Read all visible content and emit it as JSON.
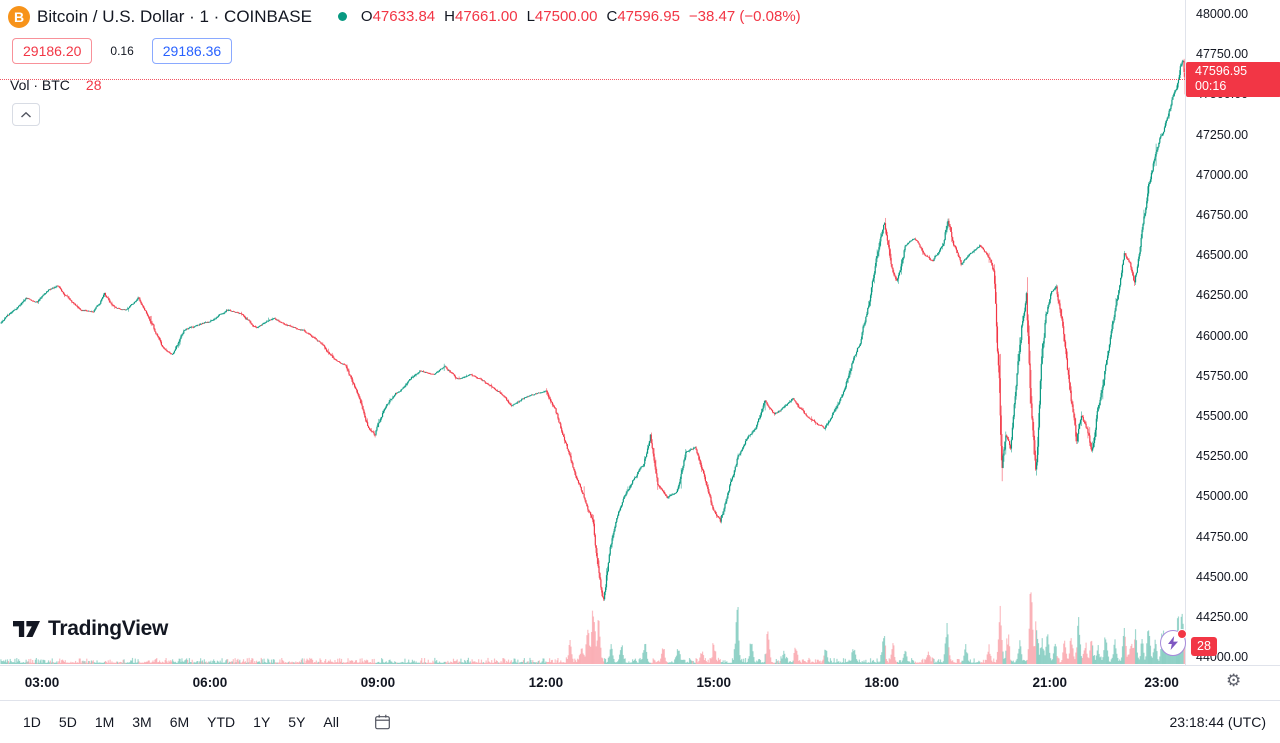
{
  "header": {
    "symbol_title": "Bitcoin / U.S. Dollar · 1 · COINBASE",
    "market_status": "open",
    "ohlc": {
      "open_label": "O",
      "open": "47633.84",
      "high_label": "H",
      "high": "47661.00",
      "low_label": "L",
      "low": "47500.00",
      "close_label": "C",
      "close": "47596.95",
      "change": "−38.47 (−0.08%)"
    },
    "bid": "29186.20",
    "spread": "0.16",
    "ask": "29186.36",
    "volume_label": "Vol · BTC",
    "volume_value": "28"
  },
  "price_axis": {
    "ticks": [
      "48000.00",
      "47750.00",
      "47500.00",
      "47250.00",
      "47000.00",
      "46750.00",
      "46500.00",
      "46250.00",
      "46000.00",
      "45750.00",
      "45500.00",
      "45250.00",
      "45000.00",
      "44750.00",
      "44500.00",
      "44250.00",
      "44000.00"
    ],
    "last_price_label": "47596.95",
    "countdown": "00:16",
    "volume_badge": "28"
  },
  "time_axis": {
    "labels": [
      {
        "text": "03:00",
        "minute": 180
      },
      {
        "text": "06:00",
        "minute": 360
      },
      {
        "text": "09:00",
        "minute": 540
      },
      {
        "text": "12:00",
        "minute": 720
      },
      {
        "text": "15:00",
        "minute": 900
      },
      {
        "text": "18:00",
        "minute": 1080
      },
      {
        "text": "21:00",
        "minute": 1260
      },
      {
        "text": "23:00",
        "minute": 1380
      }
    ]
  },
  "toolbar": {
    "ranges": [
      "1D",
      "5D",
      "1M",
      "3M",
      "6M",
      "YTD",
      "1Y",
      "5Y",
      "All"
    ],
    "clock": "23:18:44 (UTC)"
  },
  "watermark": {
    "brand": "TradingView"
  },
  "icons": {
    "bitcoin": "B",
    "gear": "⚙"
  },
  "colors": {
    "up": "#089981",
    "down": "#F23645",
    "accent_blue": "#2962FF",
    "bitcoin_orange": "#F7931A",
    "text": "#131722",
    "border": "#E0E3EB"
  },
  "chart_data": {
    "type": "candlestick",
    "title": "Bitcoin / U.S. Dollar, 1 minute, COINBASE",
    "interval_minutes": 1,
    "ohlc_current": {
      "open": 47633.84,
      "high": 47661.0,
      "low": 47500.0,
      "close": 47596.95,
      "change": -38.47,
      "change_pct": -0.08
    },
    "last_close": 47596.95,
    "time_range_minutes": [
      135,
      1405
    ],
    "y_axis": {
      "tick_step": 250,
      "first_tick": 48000,
      "last_tick": 44000,
      "price_at_top": 48087,
      "price_at_bottom": 43951,
      "grid": false
    },
    "legend_position": "top-left",
    "price_anchors": [
      [
        135,
        46080
      ],
      [
        150,
        46150
      ],
      [
        163,
        46230
      ],
      [
        175,
        46210
      ],
      [
        185,
        46280
      ],
      [
        197,
        46310
      ],
      [
        210,
        46220
      ],
      [
        222,
        46160
      ],
      [
        235,
        46150
      ],
      [
        247,
        46250
      ],
      [
        258,
        46170
      ],
      [
        270,
        46160
      ],
      [
        283,
        46230
      ],
      [
        295,
        46120
      ],
      [
        308,
        45930
      ],
      [
        320,
        45880
      ],
      [
        333,
        46040
      ],
      [
        345,
        46060
      ],
      [
        360,
        46090
      ],
      [
        378,
        46160
      ],
      [
        395,
        46130
      ],
      [
        410,
        46050
      ],
      [
        428,
        46110
      ],
      [
        445,
        46060
      ],
      [
        460,
        46030
      ],
      [
        478,
        45960
      ],
      [
        492,
        45860
      ],
      [
        505,
        45820
      ],
      [
        518,
        45640
      ],
      [
        530,
        45420
      ],
      [
        537,
        45380
      ],
      [
        545,
        45520
      ],
      [
        558,
        45630
      ],
      [
        572,
        45720
      ],
      [
        585,
        45790
      ],
      [
        600,
        45760
      ],
      [
        612,
        45810
      ],
      [
        625,
        45730
      ],
      [
        640,
        45760
      ],
      [
        655,
        45710
      ],
      [
        670,
        45650
      ],
      [
        683,
        45560
      ],
      [
        697,
        45610
      ],
      [
        710,
        45640
      ],
      [
        720,
        45650
      ],
      [
        730,
        45540
      ],
      [
        740,
        45360
      ],
      [
        750,
        45160
      ],
      [
        760,
        45010
      ],
      [
        770,
        44860
      ],
      [
        777,
        44480
      ],
      [
        782,
        44340
      ],
      [
        788,
        44650
      ],
      [
        796,
        44880
      ],
      [
        805,
        45000
      ],
      [
        815,
        45120
      ],
      [
        825,
        45200
      ],
      [
        832,
        45380
      ],
      [
        840,
        45080
      ],
      [
        850,
        44990
      ],
      [
        860,
        45030
      ],
      [
        870,
        45260
      ],
      [
        880,
        45310
      ],
      [
        890,
        45140
      ],
      [
        900,
        44910
      ],
      [
        907,
        44840
      ],
      [
        915,
        45010
      ],
      [
        925,
        45240
      ],
      [
        935,
        45360
      ],
      [
        945,
        45420
      ],
      [
        955,
        45570
      ],
      [
        965,
        45510
      ],
      [
        975,
        45550
      ],
      [
        985,
        45610
      ],
      [
        997,
        45510
      ],
      [
        1008,
        45460
      ],
      [
        1018,
        45420
      ],
      [
        1028,
        45520
      ],
      [
        1038,
        45630
      ],
      [
        1048,
        45820
      ],
      [
        1058,
        45980
      ],
      [
        1068,
        46240
      ],
      [
        1078,
        46580
      ],
      [
        1083,
        46690
      ],
      [
        1090,
        46420
      ],
      [
        1096,
        46320
      ],
      [
        1105,
        46560
      ],
      [
        1115,
        46610
      ],
      [
        1125,
        46510
      ],
      [
        1135,
        46460
      ],
      [
        1145,
        46570
      ],
      [
        1151,
        46740
      ],
      [
        1157,
        46600
      ],
      [
        1165,
        46460
      ],
      [
        1175,
        46510
      ],
      [
        1185,
        46560
      ],
      [
        1194,
        46490
      ],
      [
        1200,
        46400
      ],
      [
        1205,
        45850
      ],
      [
        1209,
        45250
      ],
      [
        1213,
        45430
      ],
      [
        1218,
        45330
      ],
      [
        1224,
        45640
      ],
      [
        1230,
        46010
      ],
      [
        1235,
        46240
      ],
      [
        1240,
        45520
      ],
      [
        1245,
        45080
      ],
      [
        1250,
        45620
      ],
      [
        1256,
        46120
      ],
      [
        1262,
        46270
      ],
      [
        1267,
        46310
      ],
      [
        1272,
        46140
      ],
      [
        1278,
        45880
      ],
      [
        1283,
        45600
      ],
      [
        1289,
        45330
      ],
      [
        1294,
        45520
      ],
      [
        1300,
        45420
      ],
      [
        1305,
        45270
      ],
      [
        1311,
        45530
      ],
      [
        1317,
        45720
      ],
      [
        1322,
        45930
      ],
      [
        1328,
        46120
      ],
      [
        1334,
        46280
      ],
      [
        1340,
        46480
      ],
      [
        1346,
        46440
      ],
      [
        1351,
        46320
      ],
      [
        1356,
        46520
      ],
      [
        1361,
        46720
      ],
      [
        1366,
        46920
      ],
      [
        1371,
        47060
      ],
      [
        1376,
        47160
      ],
      [
        1381,
        47260
      ],
      [
        1386,
        47360
      ],
      [
        1391,
        47460
      ],
      [
        1396,
        47520
      ],
      [
        1400,
        47660
      ],
      [
        1403,
        47700
      ],
      [
        1405,
        47597
      ]
    ],
    "volume_spikes": [
      [
        746,
        20
      ],
      [
        758,
        14
      ],
      [
        765,
        30
      ],
      [
        771,
        58
      ],
      [
        777,
        38
      ],
      [
        790,
        16
      ],
      [
        801,
        18
      ],
      [
        826,
        20
      ],
      [
        846,
        12
      ],
      [
        862,
        14
      ],
      [
        887,
        10
      ],
      [
        900,
        16
      ],
      [
        925,
        56
      ],
      [
        940,
        18
      ],
      [
        958,
        24
      ],
      [
        975,
        12
      ],
      [
        988,
        14
      ],
      [
        1020,
        10
      ],
      [
        1050,
        12
      ],
      [
        1082,
        30
      ],
      [
        1092,
        16
      ],
      [
        1105,
        12
      ],
      [
        1130,
        10
      ],
      [
        1150,
        36
      ],
      [
        1170,
        12
      ],
      [
        1195,
        14
      ],
      [
        1207,
        48
      ],
      [
        1215,
        24
      ],
      [
        1228,
        18
      ],
      [
        1240,
        66
      ],
      [
        1246,
        38
      ],
      [
        1252,
        20
      ],
      [
        1258,
        26
      ],
      [
        1266,
        16
      ],
      [
        1276,
        18
      ],
      [
        1283,
        22
      ],
      [
        1291,
        40
      ],
      [
        1298,
        16
      ],
      [
        1305,
        20
      ],
      [
        1312,
        14
      ],
      [
        1320,
        26
      ],
      [
        1330,
        18
      ],
      [
        1340,
        30
      ],
      [
        1347,
        16
      ],
      [
        1352,
        24
      ],
      [
        1359,
        18
      ],
      [
        1366,
        28
      ],
      [
        1373,
        20
      ],
      [
        1381,
        34
      ],
      [
        1386,
        22
      ],
      [
        1391,
        30
      ],
      [
        1397,
        42
      ],
      [
        1401,
        30
      ],
      [
        1404,
        34
      ]
    ],
    "colors": {
      "up": "#089981",
      "down": "#F23645",
      "vol_up": "rgba(8,153,129,0.38)",
      "vol_down": "rgba(242,54,69,0.32)"
    }
  }
}
